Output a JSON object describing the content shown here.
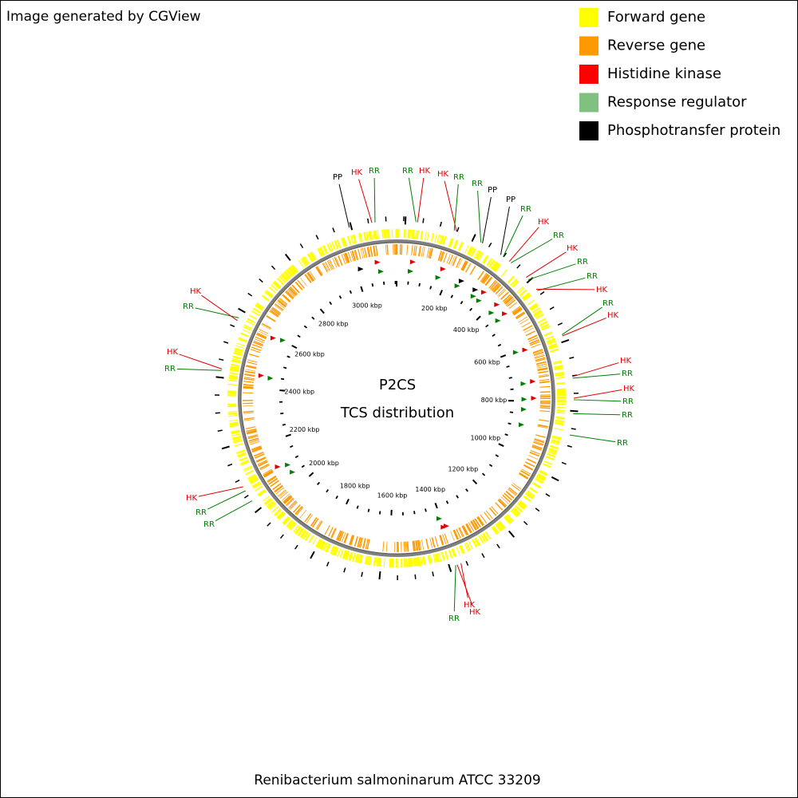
{
  "header": {
    "title": "Image generated by CGView"
  },
  "legend": [
    {
      "label": "Forward gene",
      "color": "#ffff00"
    },
    {
      "label": "Reverse gene",
      "color": "#ff9900"
    },
    {
      "label": "Histidine kinase",
      "color": "#ff0000"
    },
    {
      "label": "Response regulator",
      "color": "#80c080"
    },
    {
      "label": "Phosphotransfer protein",
      "color": "#000000"
    }
  ],
  "center": {
    "title": "P2CS",
    "subtitle": "TCS distribution"
  },
  "footer": {
    "organism": "Renibacterium salmoninarum ATCC 33209"
  },
  "scale_labels": [
    "200 kbp",
    "400 kbp",
    "600 kbp",
    "800 kbp",
    "1000 kbp",
    "1200 kbp",
    "1400 kbp",
    "1600 kbp",
    "1800 kbp",
    "2000 kbp",
    "2200 kbp",
    "2400 kbp",
    "2600 kbp",
    "2800 kbp",
    "3000 kbp"
  ],
  "features": [
    {
      "label": "PP",
      "color": "#000000"
    },
    {
      "label": "HK",
      "color": "#e00000"
    },
    {
      "label": "RR",
      "color": "#008000"
    },
    {
      "label": "RR",
      "color": "#008000"
    },
    {
      "label": "HK",
      "color": "#e00000"
    },
    {
      "label": "HK",
      "color": "#e00000"
    },
    {
      "label": "RR",
      "color": "#008000"
    },
    {
      "label": "RR",
      "color": "#008000"
    },
    {
      "label": "PP",
      "color": "#000000"
    },
    {
      "label": "PP",
      "color": "#000000"
    },
    {
      "label": "RR",
      "color": "#008000"
    },
    {
      "label": "HK",
      "color": "#e00000"
    },
    {
      "label": "RR",
      "color": "#008000"
    },
    {
      "label": "HK",
      "color": "#e00000"
    },
    {
      "label": "RR",
      "color": "#008000"
    },
    {
      "label": "RR",
      "color": "#008000"
    },
    {
      "label": "HK",
      "color": "#e00000"
    },
    {
      "label": "RR",
      "color": "#008000"
    },
    {
      "label": "HK",
      "color": "#e00000"
    },
    {
      "label": "HK",
      "color": "#e00000"
    },
    {
      "label": "RR",
      "color": "#008000"
    },
    {
      "label": "HK",
      "color": "#e00000"
    },
    {
      "label": "RR",
      "color": "#008000"
    },
    {
      "label": "RR",
      "color": "#008000"
    },
    {
      "label": "RR",
      "color": "#008000"
    },
    {
      "label": "HK",
      "color": "#e00000"
    },
    {
      "label": "HK",
      "color": "#e00000"
    },
    {
      "label": "RR",
      "color": "#008000"
    },
    {
      "label": "RR",
      "color": "#008000"
    },
    {
      "label": "RR",
      "color": "#008000"
    },
    {
      "label": "HK",
      "color": "#e00000"
    },
    {
      "label": "RR",
      "color": "#008000"
    },
    {
      "label": "HK",
      "color": "#e00000"
    },
    {
      "label": "RR",
      "color": "#008000"
    },
    {
      "label": "HK",
      "color": "#e00000"
    }
  ]
}
